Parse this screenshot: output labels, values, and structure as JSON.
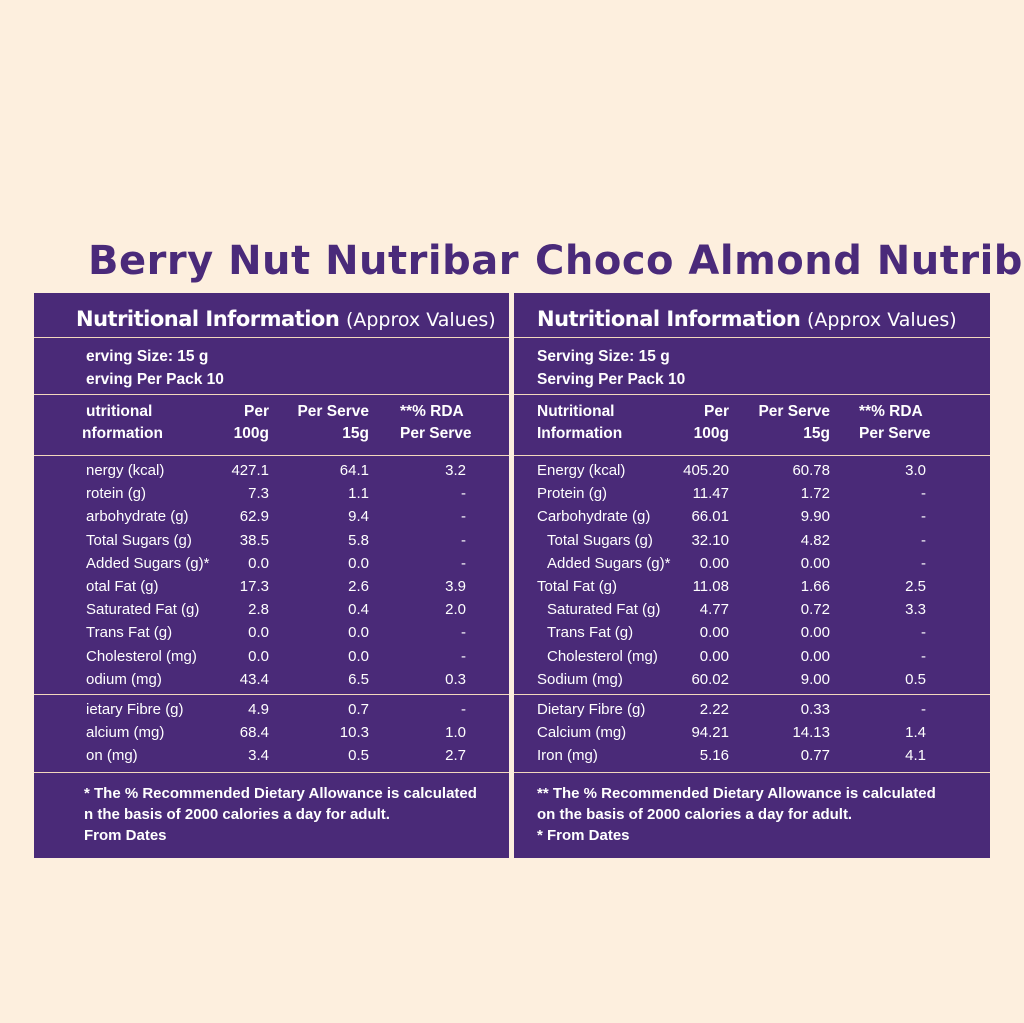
{
  "panels": [
    {
      "title": "Berry Nut Nutribar",
      "header_bold": "Nutritional Information",
      "header_normal": "(Approx Values)",
      "serving_size": "erving Size: 15 g",
      "serving_per_pack": "erving Per Pack 10",
      "col_name_1": "utritional",
      "col_name_2": "nformation",
      "col_per100_1": "Per",
      "col_per100_2": "100g",
      "col_serve_1": "Per Serve",
      "col_serve_2": "15g",
      "col_rda_1": "**% RDA",
      "col_rda_2": "Per Serve",
      "rows": [
        {
          "name": "nergy (kcal)",
          "per100": "427.1",
          "serve": "64.1",
          "rda": "3.2"
        },
        {
          "name": "rotein (g)",
          "per100": "7.3",
          "serve": "1.1",
          "rda": "-"
        },
        {
          "name": "arbohydrate (g)",
          "per100": "62.9",
          "serve": "9.4",
          "rda": "-"
        },
        {
          "name": "Total Sugars (g)",
          "per100": "38.5",
          "serve": "5.8",
          "rda": "-"
        },
        {
          "name": "Added  Sugars (g)*",
          "per100": "0.0",
          "serve": "0.0",
          "rda": "-"
        },
        {
          "name": "otal Fat (g)",
          "per100": "17.3",
          "serve": "2.6",
          "rda": "3.9"
        },
        {
          "name": "Saturated Fat (g)",
          "per100": "2.8",
          "serve": "0.4",
          "rda": "2.0"
        },
        {
          "name": "Trans Fat (g)",
          "per100": "0.0",
          "serve": "0.0",
          "rda": "-"
        },
        {
          "name": "Cholesterol (mg)",
          "per100": "0.0",
          "serve": "0.0",
          "rda": "-"
        },
        {
          "name": "odium (mg)",
          "per100": "43.4",
          "serve": "6.5",
          "rda": "0.3"
        }
      ],
      "rows2": [
        {
          "name": "ietary Fibre (g)",
          "per100": "4.9",
          "serve": "0.7",
          "rda": "-"
        },
        {
          "name": "alcium (mg)",
          "per100": "68.4",
          "serve": "10.3",
          "rda": "1.0"
        },
        {
          "name": "on (mg)",
          "per100": "3.4",
          "serve": "0.5",
          "rda": "2.7"
        }
      ],
      "foot_1": "* The % Recommended Dietary Allowance is calculated",
      "foot_2": "n the basis of 2000 calories a day for adult.",
      "foot_3": " From Dates"
    },
    {
      "title": "Choco Almond Nutribar",
      "header_bold": "Nutritional Information",
      "header_normal": "(Approx Values)",
      "serving_size": "Serving Size: 15 g",
      "serving_per_pack": "Serving Per Pack 10",
      "col_name_1": "Nutritional",
      "col_name_2": "Information",
      "col_per100_1": "Per",
      "col_per100_2": "100g",
      "col_serve_1": "Per Serve",
      "col_serve_2": "15g",
      "col_rda_1": "**% RDA",
      "col_rda_2": "Per Serve",
      "rows": [
        {
          "name": "Energy (kcal)",
          "per100": "405.20",
          "serve": "60.78",
          "rda": "3.0"
        },
        {
          "name": "Protein (g)",
          "per100": "11.47",
          "serve": "1.72",
          "rda": "-"
        },
        {
          "name": "Carbohydrate (g)",
          "per100": "66.01",
          "serve": "9.90",
          "rda": "-"
        },
        {
          "name": "Total Sugars (g)",
          "per100": "32.10",
          "serve": "4.82",
          "rda": "-"
        },
        {
          "name": "Added  Sugars (g)*",
          "per100": "0.00",
          "serve": "0.00",
          "rda": "-"
        },
        {
          "name": "Total Fat (g)",
          "per100": "11.08",
          "serve": "1.66",
          "rda": "2.5"
        },
        {
          "name": "Saturated Fat (g)",
          "per100": "4.77",
          "serve": "0.72",
          "rda": "3.3"
        },
        {
          "name": "Trans Fat (g)",
          "per100": "0.00",
          "serve": "0.00",
          "rda": "-"
        },
        {
          "name": "Cholesterol (mg)",
          "per100": "0.00",
          "serve": "0.00",
          "rda": "-"
        },
        {
          "name": "Sodium (mg)",
          "per100": "60.02",
          "serve": "9.00",
          "rda": "0.5"
        }
      ],
      "rows2": [
        {
          "name": "Dietary Fibre (g)",
          "per100": "2.22",
          "serve": "0.33",
          "rda": "-"
        },
        {
          "name": "Calcium (mg)",
          "per100": "94.21",
          "serve": "14.13",
          "rda": "1.4"
        },
        {
          "name": "Iron (mg)",
          "per100": "5.16",
          "serve": "0.77",
          "rda": "4.1"
        }
      ],
      "foot_1": "** The % Recommended Dietary Allowance is calculated",
      "foot_2": "on the basis of 2000 calories a day for adult.",
      "foot_3": "* From Dates"
    }
  ]
}
